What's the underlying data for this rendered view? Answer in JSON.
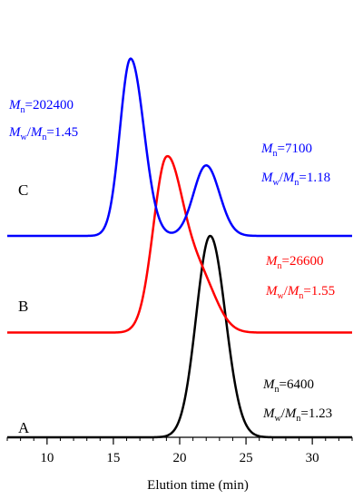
{
  "chart_data": {
    "type": "line",
    "xlabel": "Elution time (min)",
    "ylabel": "",
    "xlim": [
      7,
      33
    ],
    "x_ticks": [
      10,
      15,
      20,
      25,
      30
    ],
    "grid": false,
    "series": [
      {
        "name": "A",
        "color": "#000000",
        "baseline": 0,
        "peaks": [
          {
            "x": 22.3,
            "height": 1.0,
            "sigma_left": 1.05,
            "sigma_right": 1.15
          }
        ],
        "annotation": {
          "Mn": "6400",
          "ratio": "1.23"
        }
      },
      {
        "name": "B",
        "color": "#ff0000",
        "baseline": 0.52,
        "peaks": [
          {
            "x": 19.0,
            "height": 0.85,
            "sigma_left": 1.0,
            "sigma_right": 1.25
          },
          {
            "x": 21.6,
            "height": 0.25,
            "sigma_left": 1.2,
            "sigma_right": 1.2
          }
        ],
        "annotation": {
          "Mn": "26600",
          "ratio": "1.55"
        }
      },
      {
        "name": "C",
        "color": "#0000ff",
        "baseline": 1.0,
        "peaks": [
          {
            "x": 16.3,
            "height": 0.88,
            "sigma_left": 0.8,
            "sigma_right": 1.0
          },
          {
            "x": 22.0,
            "height": 0.35,
            "sigma_left": 0.95,
            "sigma_right": 1.0
          }
        ],
        "annotation": {
          "Mn": "202400",
          "ratio": "1.45"
        },
        "annotation2": {
          "Mn": "7100",
          "ratio": "1.18"
        }
      }
    ]
  }
}
